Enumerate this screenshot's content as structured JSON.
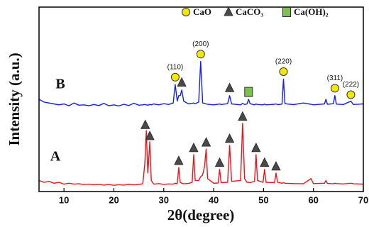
{
  "chart_data": {
    "type": "line",
    "x_label": "2θ(degree)",
    "y_label": "Intensity (a.u.)",
    "xlim": [
      5,
      70
    ],
    "xticks": [
      10,
      20,
      30,
      40,
      50,
      60,
      70
    ],
    "ylim": [
      0,
      100
    ],
    "x": [
      5,
      6,
      7,
      8,
      9,
      10,
      11,
      12,
      13,
      14,
      15,
      16,
      17,
      18,
      19,
      20,
      21,
      22,
      23,
      24,
      25,
      25.8,
      26.2,
      26.5,
      26.8,
      27.0,
      27.2,
      27.5,
      28,
      29,
      30,
      31,
      31.9,
      32.3,
      32.7,
      33.0,
      33.3,
      33.6,
      34.0,
      35,
      35.7,
      36.0,
      36.3,
      37.0,
      37.4,
      37.8,
      38.2,
      38.5,
      38.8,
      40,
      40.9,
      41.2,
      41.5,
      42.8,
      43.2,
      43.6,
      45.4,
      45.8,
      46.2,
      46.7,
      47.0,
      47.3,
      48.2,
      48.5,
      48.8,
      49.9,
      50.2,
      50.5,
      52.2,
      52.5,
      52.8,
      53.7,
      54.0,
      54.3,
      56,
      58,
      59.5,
      60,
      62.2,
      62.5,
      62.8,
      64.0,
      64.3,
      64.6,
      66,
      67.5,
      68,
      70
    ],
    "series": [
      {
        "name": "A",
        "color": "#e8141b",
        "values": [
          6,
          5,
          5.5,
          4.5,
          5,
          4,
          4.5,
          4,
          4.2,
          3.8,
          4,
          3.6,
          3.9,
          3.5,
          3.8,
          3.4,
          3.7,
          3.5,
          3.9,
          3.6,
          3.8,
          4.2,
          15,
          33,
          10,
          18,
          27,
          6,
          4,
          4.3,
          3.9,
          4.1,
          4,
          4.5,
          4.2,
          13,
          5,
          4.5,
          4.2,
          4.4,
          5,
          20,
          6,
          6,
          8,
          9,
          14,
          23,
          7,
          4.5,
          4.6,
          12,
          4.8,
          5,
          25,
          5.5,
          6,
          37,
          7,
          5,
          5,
          4.8,
          5.5,
          20,
          6,
          5,
          12,
          5,
          4.8,
          10,
          5,
          4.5,
          4.8,
          4.5,
          4.3,
          4.2,
          7,
          4.3,
          4.5,
          6,
          4.4,
          4.2,
          4.5,
          4.3,
          4.1,
          4.5,
          4.2,
          4
        ]
      },
      {
        "name": "B",
        "color": "#1420e0",
        "values": [
          50,
          48.5,
          48,
          47.5,
          47,
          47.5,
          46.5,
          48,
          46.8,
          47,
          46.5,
          47.2,
          46.6,
          47.8,
          46.5,
          47,
          46.4,
          47.3,
          46.6,
          47.9,
          46.8,
          47,
          47.2,
          47,
          46.8,
          47,
          47.2,
          47,
          47.5,
          47,
          47.6,
          47.2,
          48,
          58,
          49,
          52,
          52,
          55,
          49,
          47.5,
          47.8,
          48,
          47.6,
          48.5,
          70.5,
          48,
          47.8,
          47.5,
          47.3,
          47,
          47.3,
          47.5,
          47.2,
          47.6,
          52,
          47.5,
          47,
          47.8,
          47.2,
          47.5,
          50,
          47.6,
          47,
          47.5,
          47.2,
          47,
          47.4,
          47,
          47.3,
          47.5,
          47.1,
          47.4,
          61,
          47.6,
          47.1,
          48,
          47.3,
          47,
          47.5,
          50,
          47.3,
          47.6,
          52,
          47.4,
          47.2,
          49,
          47.2,
          47.5
        ]
      }
    ],
    "legend": [
      {
        "label": "CaO",
        "shape": "circle",
        "color": "#f5e800"
      },
      {
        "label": "CaCO₃",
        "shape": "triangle",
        "color": "#4a4a4a"
      },
      {
        "label": "Ca(OH)₂",
        "shape": "square",
        "color": "#7cc24a"
      }
    ],
    "annotations": [
      {
        "shape": "circle",
        "x": 32.3,
        "y": 62,
        "label": "(110)"
      },
      {
        "shape": "circle",
        "x": 37.4,
        "y": 74.5,
        "label": "(200)"
      },
      {
        "shape": "circle",
        "x": 54.0,
        "y": 65,
        "label": "(220)"
      },
      {
        "shape": "circle",
        "x": 64.3,
        "y": 56,
        "label": "(311)"
      },
      {
        "shape": "circle",
        "x": 67.5,
        "y": 52.5,
        "label": "(222)"
      },
      {
        "shape": "triangle",
        "x": 33.6,
        "y": 59
      },
      {
        "shape": "triangle",
        "x": 43.2,
        "y": 56
      },
      {
        "shape": "square",
        "x": 47.0,
        "y": 54
      },
      {
        "shape": "triangle",
        "x": 26.3,
        "y": 36
      },
      {
        "shape": "triangle",
        "x": 27.2,
        "y": 30
      },
      {
        "shape": "triangle",
        "x": 33.0,
        "y": 16.5
      },
      {
        "shape": "triangle",
        "x": 36.0,
        "y": 23.5
      },
      {
        "shape": "triangle",
        "x": 38.5,
        "y": 26.5
      },
      {
        "shape": "triangle",
        "x": 41.2,
        "y": 15.5
      },
      {
        "shape": "triangle",
        "x": 43.2,
        "y": 28.5
      },
      {
        "shape": "triangle",
        "x": 45.8,
        "y": 40.5
      },
      {
        "shape": "triangle",
        "x": 48.5,
        "y": 23.5
      },
      {
        "shape": "triangle",
        "x": 50.2,
        "y": 15.5
      },
      {
        "shape": "triangle",
        "x": 52.5,
        "y": 13.5
      }
    ]
  }
}
